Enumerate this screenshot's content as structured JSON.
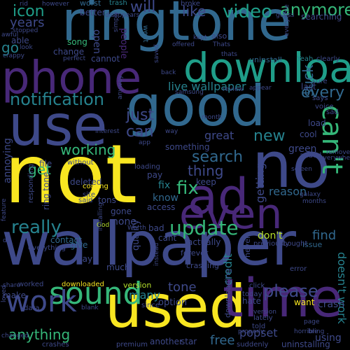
{
  "colors": {
    "background": "#000000",
    "yellow": "#f8e621",
    "lime": "#b5de2b",
    "green": "#6ece58",
    "teal_green": "#35b779",
    "teal": "#1f9e89",
    "cyan": "#26828e",
    "blue": "#31688e",
    "indigo": "#3e4989",
    "violet": "#482878",
    "purple": "#440154"
  },
  "words": [
    "not",
    "wallpaper",
    "ringtone",
    "phone",
    "good",
    "use",
    "no",
    "ad",
    "used",
    "time",
    "even",
    "download",
    "can't",
    "sound",
    "work",
    "update",
    "really",
    "notification",
    "video",
    "anymore",
    "icon",
    "will",
    "like",
    "years",
    "go",
    "just",
    "can",
    "fix",
    "every",
    "new",
    "search",
    "thing",
    "get",
    "working",
    "find",
    "please",
    "don't",
    "anything",
    "free",
    "popset",
    "doesn't work",
    "tone",
    "many",
    "great",
    "live wallpaper",
    "suck",
    "better",
    "worst",
    "trash",
    "broke",
    "searching",
    "open",
    "song",
    "able",
    "change",
    "cannot",
    "people",
    "went",
    "also",
    "uninstall",
    "Yeah",
    "clearly",
    "contact",
    "give",
    "annoying",
    "none",
    "know",
    "reason",
    "getting",
    "fix",
    "ring tone",
    "tons",
    "gone",
    "access",
    "cant",
    "actually",
    "issue",
    "forever",
    "bought",
    "previously",
    "crashing",
    "quality",
    "version",
    "option",
    "want",
    "hate",
    "never",
    "credit",
    "downloading",
    "lately",
    "told",
    "added",
    "cool",
    "last",
    "load",
    "sure",
    "says",
    "voice",
    "deleted",
    "file",
    "without",
    "something",
    "loading",
    "crashes",
    "premium",
    "another",
    "star",
    "suddenly",
    "uninstalling",
    "using",
    "make",
    "worked",
    "downloaded",
    "share",
    "data",
    "blank",
    "since",
    "error",
    "click",
    "today",
    "crash",
    "said",
    "much",
    "bad",
    "Worth",
    "God",
    "day",
    "coming",
    "site",
    "keep",
    "pay",
    "app",
    "way",
    "month",
    "months",
    "galaxy",
    "samsung",
    "review",
    "appear",
    "interest",
    "simply",
    "offered",
    "disappears",
    "stopped",
    "awful",
    "look",
    "crappy",
    "perfect",
    "guess",
    "everytime",
    "saved",
    "back",
    "green",
    "sad",
    "rid",
    "however",
    "feature",
    "loved",
    "remove",
    "de",
    "changed",
    "everything",
    "responding",
    "installing",
    "thats",
    "Thats",
    "kept",
    "screen",
    "everywhere",
    "properly",
    "page",
    "anyway",
    "instead",
    "version",
    "bring",
    "horrible",
    "spam",
    "ton"
  ]
}
